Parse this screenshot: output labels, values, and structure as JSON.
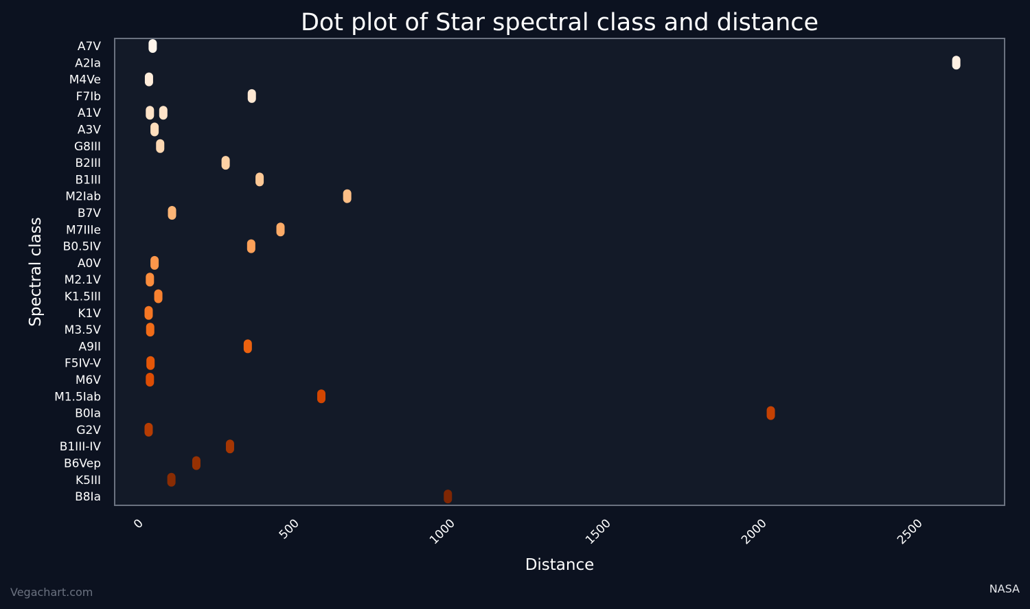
{
  "colors": {
    "background": "#0c1220",
    "plot_background": "#131a28",
    "frame": "#6b7280",
    "text": "#ffffff",
    "watermark": "#6b7280"
  },
  "credits": {
    "left": "Vegachart.com",
    "right": "NASA"
  },
  "chart_data": {
    "type": "scatter",
    "title": "Dot plot of Star spectral class and distance",
    "xlabel": "Distance",
    "ylabel": "Spectral class",
    "xlim": [
      -80,
      2775
    ],
    "xticks": [
      0,
      500,
      1000,
      1500,
      2000,
      2500
    ],
    "grid": false,
    "categories": [
      "A7V",
      "A2Ia",
      "M4Ve",
      "F7Ib",
      "A1V",
      "A3V",
      "G8III",
      "B2III",
      "B1III",
      "M2Iab",
      "B7V",
      "M7IIIe",
      "B0.5IV",
      "A0V",
      "M2.1V",
      "K1.5III",
      "K1V",
      "M3.5V",
      "A9II",
      "F5IV-V",
      "M6V",
      "M1.5Iab",
      "B0Ia",
      "G2V",
      "B1III-IV",
      "B6Vep",
      "K5III",
      "B8Ia"
    ],
    "points": [
      {
        "cls": "A7V",
        "x": 42,
        "color": "#fff5eb"
      },
      {
        "cls": "A2Ia",
        "x": 2620,
        "color": "#fff1e3"
      },
      {
        "cls": "M4Ve",
        "x": 30,
        "color": "#ffeddb"
      },
      {
        "cls": "F7Ib",
        "x": 360,
        "color": "#fee8d3"
      },
      {
        "cls": "A1V",
        "x": 33,
        "color": "#fee3c8"
      },
      {
        "cls": "A1V",
        "x": 76,
        "color": "#fee3c8"
      },
      {
        "cls": "A3V",
        "x": 48,
        "color": "#fedebd"
      },
      {
        "cls": "G8III",
        "x": 66,
        "color": "#fdd8b2"
      },
      {
        "cls": "B2III",
        "x": 276,
        "color": "#fdd1a4"
      },
      {
        "cls": "B1III",
        "x": 385,
        "color": "#fdc895"
      },
      {
        "cls": "M2Iab",
        "x": 666,
        "color": "#fdbf86"
      },
      {
        "cls": "B7V",
        "x": 104,
        "color": "#fdb576"
      },
      {
        "cls": "M7IIIe",
        "x": 452,
        "color": "#fdab67"
      },
      {
        "cls": "B0.5IV",
        "x": 358,
        "color": "#fda159"
      },
      {
        "cls": "A0V",
        "x": 48,
        "color": "#fd974b"
      },
      {
        "cls": "M2.1V",
        "x": 33,
        "color": "#fb8d3d"
      },
      {
        "cls": "K1.5III",
        "x": 60,
        "color": "#f88230"
      },
      {
        "cls": "K1V",
        "x": 29,
        "color": "#f57724"
      },
      {
        "cls": "M3.5V",
        "x": 34,
        "color": "#f16c18"
      },
      {
        "cls": "A9II",
        "x": 347,
        "color": "#ec620f"
      },
      {
        "cls": "F5IV-V",
        "x": 35,
        "color": "#e55708"
      },
      {
        "cls": "M6V",
        "x": 33,
        "color": "#dd4d04"
      },
      {
        "cls": "M1.5Iab",
        "x": 583,
        "color": "#d34601"
      },
      {
        "cls": "B0Ia",
        "x": 2025,
        "color": "#c44103"
      },
      {
        "cls": "G2V",
        "x": 29,
        "color": "#b53c03"
      },
      {
        "cls": "B1III-IV",
        "x": 290,
        "color": "#a53603"
      },
      {
        "cls": "B6Vep",
        "x": 182,
        "color": "#963103"
      },
      {
        "cls": "K5III",
        "x": 102,
        "color": "#892c03"
      },
      {
        "cls": "B8Ia",
        "x": 989,
        "color": "#7f2704"
      }
    ]
  }
}
